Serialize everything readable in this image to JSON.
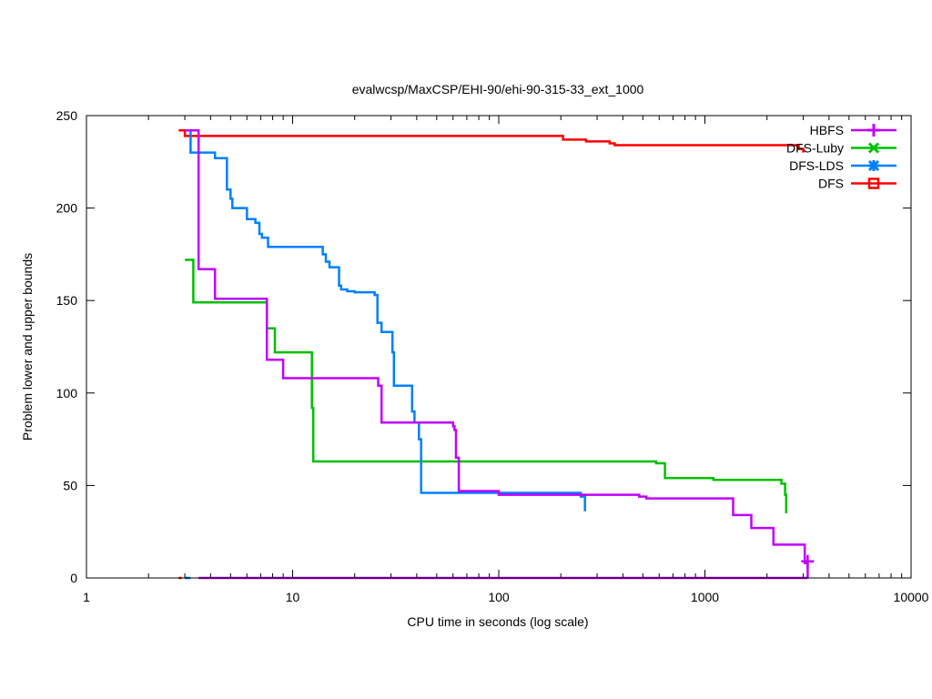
{
  "chart_data": {
    "type": "line",
    "title": "evalwcsp/MaxCSP/EHI-90/ehi-90-315-33_ext_1000",
    "xlabel": "CPU time in seconds (log scale)",
    "ylabel": "Problem lower and upper bounds",
    "xscale": "log",
    "xlim": [
      1,
      10000
    ],
    "ylim": [
      0,
      250
    ],
    "xticks": [
      1,
      10,
      100,
      1000,
      10000
    ],
    "xtick_labels": [
      "1",
      "10",
      "100",
      "1000",
      "10000"
    ],
    "yticks": [
      0,
      50,
      100,
      150,
      200,
      250
    ],
    "ytick_labels": [
      "0",
      "50",
      "100",
      "150",
      "200",
      "250"
    ],
    "grid": false,
    "legend_position": "top-right",
    "series": [
      {
        "name": "HBFS",
        "color": "#c000ff",
        "marker": "plus",
        "upper": [
          [
            3.0,
            242
          ],
          [
            3.5,
            242
          ],
          [
            3.5,
            167
          ],
          [
            4.2,
            167
          ],
          [
            4.2,
            151
          ],
          [
            7.5,
            151
          ],
          [
            7.5,
            118
          ],
          [
            9.0,
            118
          ],
          [
            9.0,
            108
          ],
          [
            26,
            108
          ],
          [
            26,
            104
          ],
          [
            27,
            104
          ],
          [
            27,
            84
          ],
          [
            60,
            84
          ],
          [
            60,
            82
          ],
          [
            61,
            82
          ],
          [
            61,
            80
          ],
          [
            62,
            80
          ],
          [
            62,
            65
          ],
          [
            64,
            65
          ],
          [
            64,
            47
          ],
          [
            100,
            47
          ],
          [
            100,
            45
          ],
          [
            480,
            45
          ],
          [
            480,
            44
          ],
          [
            520,
            44
          ],
          [
            520,
            43
          ],
          [
            1370,
            43
          ],
          [
            1370,
            34
          ],
          [
            1680,
            34
          ],
          [
            1680,
            27
          ],
          [
            2150,
            27
          ],
          [
            2150,
            18
          ],
          [
            3050,
            18
          ],
          [
            3050,
            8
          ],
          [
            3150,
            8
          ],
          [
            3150,
            0
          ]
        ],
        "lower": [
          [
            3.5,
            0
          ],
          [
            3150,
            0
          ]
        ],
        "end_marker": [
          3150,
          9
        ]
      },
      {
        "name": "DFS-Luby",
        "color": "#00c000",
        "marker": "x",
        "upper": [
          [
            3.0,
            172
          ],
          [
            3.3,
            172
          ],
          [
            3.3,
            149
          ],
          [
            7.5,
            149
          ],
          [
            7.5,
            135
          ],
          [
            8.2,
            135
          ],
          [
            8.2,
            122
          ],
          [
            12.4,
            122
          ],
          [
            12.4,
            92
          ],
          [
            12.6,
            92
          ],
          [
            12.6,
            63
          ],
          [
            580,
            63
          ],
          [
            580,
            62
          ],
          [
            640,
            62
          ],
          [
            640,
            54
          ],
          [
            1100,
            54
          ],
          [
            1100,
            53
          ],
          [
            2350,
            53
          ],
          [
            2350,
            51
          ],
          [
            2450,
            51
          ],
          [
            2450,
            45
          ],
          [
            2480,
            45
          ],
          [
            2480,
            35
          ]
        ],
        "lower": [
          [
            3.0,
            0
          ],
          [
            3.1,
            0
          ]
        ]
      },
      {
        "name": "DFS-LDS",
        "color": "#0080ff",
        "marker": "star",
        "upper": [
          [
            3.0,
            242
          ],
          [
            3.2,
            242
          ],
          [
            3.2,
            230
          ],
          [
            4.2,
            230
          ],
          [
            4.2,
            227
          ],
          [
            4.8,
            227
          ],
          [
            4.8,
            210
          ],
          [
            5.0,
            210
          ],
          [
            5.0,
            205
          ],
          [
            5.1,
            205
          ],
          [
            5.1,
            200
          ],
          [
            6.0,
            200
          ],
          [
            6.0,
            194
          ],
          [
            6.6,
            194
          ],
          [
            6.6,
            192
          ],
          [
            6.9,
            192
          ],
          [
            6.9,
            186
          ],
          [
            7.1,
            186
          ],
          [
            7.1,
            184
          ],
          [
            7.6,
            184
          ],
          [
            7.6,
            179
          ],
          [
            14,
            179
          ],
          [
            14,
            175
          ],
          [
            14.5,
            175
          ],
          [
            14.5,
            171
          ],
          [
            15.1,
            171
          ],
          [
            15.1,
            168
          ],
          [
            16.8,
            168
          ],
          [
            16.8,
            158
          ],
          [
            17.2,
            158
          ],
          [
            17.2,
            156
          ],
          [
            18.4,
            156
          ],
          [
            18.4,
            155
          ],
          [
            20,
            155
          ],
          [
            20,
            154.5
          ],
          [
            25,
            154.5
          ],
          [
            25,
            153
          ],
          [
            25.8,
            153
          ],
          [
            25.8,
            138
          ],
          [
            27,
            138
          ],
          [
            27,
            133
          ],
          [
            30.5,
            133
          ],
          [
            30.5,
            122
          ],
          [
            31,
            122
          ],
          [
            31,
            104
          ],
          [
            38,
            104
          ],
          [
            38,
            90
          ],
          [
            39,
            90
          ],
          [
            39,
            84
          ],
          [
            41,
            84
          ],
          [
            41,
            75
          ],
          [
            42,
            75
          ],
          [
            42,
            46
          ],
          [
            250,
            46
          ],
          [
            250,
            44
          ],
          [
            262,
            44
          ],
          [
            262,
            36
          ]
        ],
        "lower": [
          [
            3.0,
            0
          ],
          [
            3.2,
            0
          ]
        ]
      },
      {
        "name": "DFS",
        "color": "#ff0000",
        "marker": "square",
        "upper": [
          [
            2.8,
            242
          ],
          [
            3.0,
            242
          ],
          [
            3.0,
            239
          ],
          [
            205,
            239
          ],
          [
            205,
            237
          ],
          [
            265,
            237
          ],
          [
            265,
            236
          ],
          [
            345,
            236
          ],
          [
            345,
            235
          ],
          [
            365,
            235
          ],
          [
            365,
            234
          ],
          [
            2850,
            234
          ],
          [
            2850,
            232
          ],
          [
            3000,
            232
          ],
          [
            3000,
            230
          ]
        ],
        "lower": [
          [
            2.8,
            0
          ],
          [
            2.9,
            0
          ]
        ]
      }
    ]
  }
}
